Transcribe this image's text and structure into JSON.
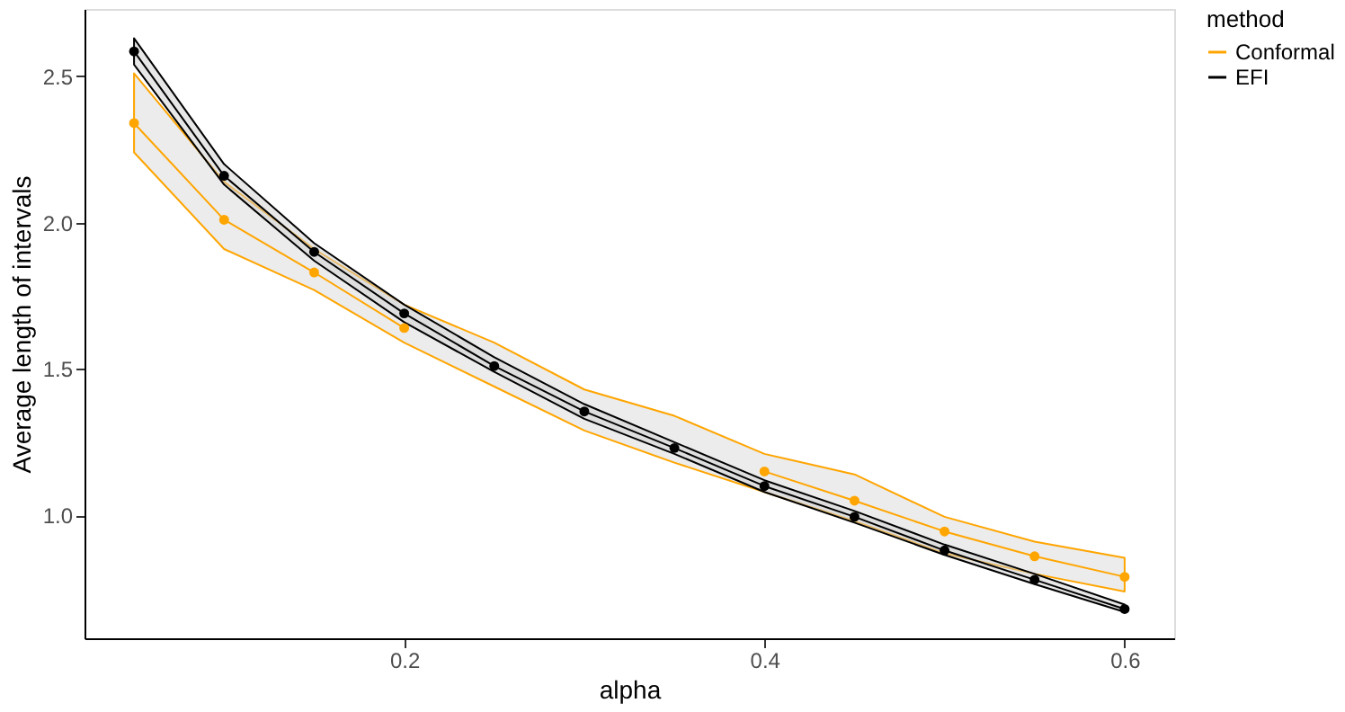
{
  "chart_data": {
    "type": "line",
    "xlabel": "alpha",
    "ylabel": "Average length of intervals",
    "legend_title": "method",
    "x": [
      0.05,
      0.1,
      0.15,
      0.2,
      0.25,
      0.3,
      0.35,
      0.4,
      0.45,
      0.5,
      0.55,
      0.6
    ],
    "series": [
      {
        "name": "Conformal",
        "color": "#ffa500",
        "values": [
          2.34,
          2.01,
          1.83,
          1.64,
          null,
          null,
          null,
          1.15,
          1.05,
          0.945,
          0.86,
          0.79
        ],
        "lower": [
          2.24,
          1.91,
          1.77,
          1.59,
          1.44,
          1.29,
          1.18,
          1.08,
          0.98,
          0.87,
          0.8,
          0.74
        ],
        "upper": [
          2.51,
          2.14,
          1.91,
          1.72,
          1.59,
          1.43,
          1.34,
          1.21,
          1.14,
          0.995,
          0.91,
          0.855
        ]
      },
      {
        "name": "EFI",
        "color": "#000000",
        "values": [
          2.585,
          2.16,
          1.9,
          1.69,
          1.51,
          1.355,
          1.23,
          1.1,
          0.995,
          0.88,
          0.78,
          0.68
        ],
        "lower": [
          2.54,
          2.13,
          1.87,
          1.66,
          1.49,
          1.33,
          1.21,
          1.08,
          0.975,
          0.865,
          0.765,
          0.67
        ],
        "upper": [
          2.63,
          2.2,
          1.93,
          1.72,
          1.54,
          1.38,
          1.25,
          1.12,
          1.015,
          0.9,
          0.8,
          0.695
        ]
      }
    ],
    "xlim": [
      0.0225,
      0.6275
    ],
    "ylim": [
      0.58,
      2.73
    ],
    "xticks": [
      0.2,
      0.4,
      0.6
    ],
    "yticks": [
      {
        "value": 1.0,
        "label": "1.0"
      },
      1.5,
      {
        "value": 2.0,
        "label": "2.0"
      },
      2.5
    ],
    "grid": false,
    "legend": "right",
    "marker": "circle",
    "line_style": "solid"
  }
}
